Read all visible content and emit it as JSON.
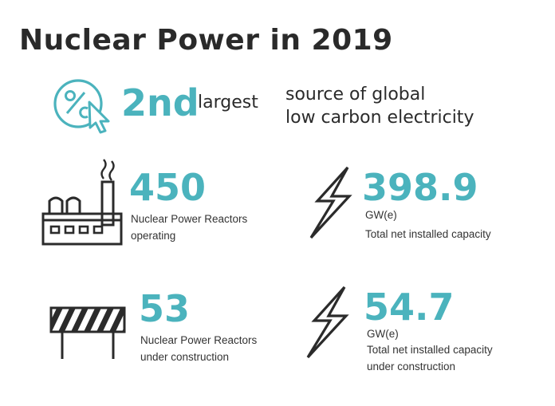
{
  "title": "Nuclear Power in 2019",
  "colors": {
    "accent": "#4bb3bd",
    "text": "#2b2b2b"
  },
  "headline": {
    "rank": "2nd",
    "rank_suffix": "largest",
    "description_line1": "source of global",
    "description_line2": "low carbon electricity",
    "icon": "percent-cursor-icon"
  },
  "stats": {
    "reactors_operating": {
      "value": "450",
      "label_line1": "Nuclear Power Reactors",
      "label_line2": "operating",
      "icon": "factory-icon"
    },
    "capacity_installed": {
      "value": "398.9",
      "unit": "GW(e)",
      "label_line1": "Total net installed capacity",
      "icon": "lightning-bolt-icon"
    },
    "reactors_construction": {
      "value": "53",
      "label_line1": "Nuclear Power Reactors",
      "label_line2": "under construction",
      "icon": "construction-barrier-icon"
    },
    "capacity_construction": {
      "value": "54.7",
      "unit": "GW(e)",
      "label_line1": "Total net installed capacity",
      "label_line2": "under construction",
      "icon": "lightning-bolt-icon"
    }
  }
}
